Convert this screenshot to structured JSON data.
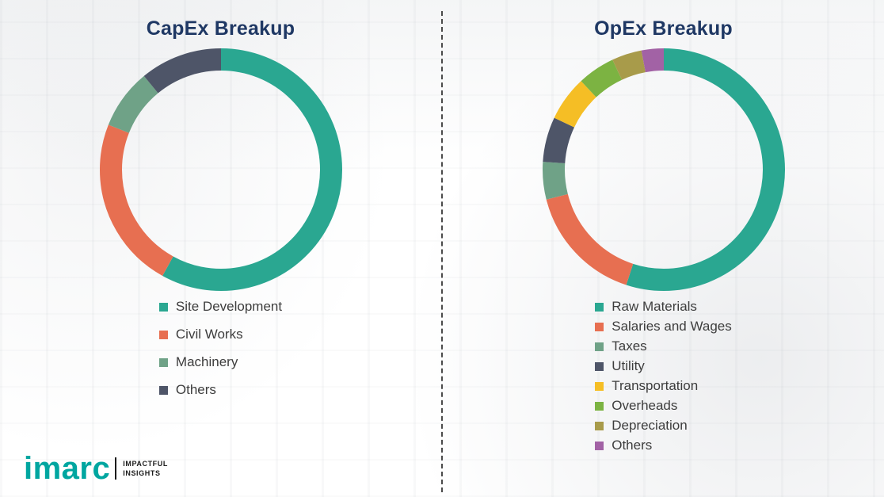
{
  "chart_data": [
    {
      "type": "pie",
      "variant": "donut",
      "title": "CapEx Breakup",
      "labels": [
        "Site Development",
        "Civil Works",
        "Machinery",
        "Others"
      ],
      "values": [
        58,
        23,
        8,
        11
      ],
      "colors": [
        "#2AA791",
        "#E76F51",
        "#6FA287",
        "#4E5568"
      ],
      "legend_position": "bottom",
      "data_labels_shown": false
    },
    {
      "type": "pie",
      "variant": "donut",
      "title": "OpEx Breakup",
      "labels": [
        "Raw Materials",
        "Salaries and Wages",
        "Taxes",
        "Utility",
        "Transportation",
        "Overheads",
        "Depreciation",
        "Others"
      ],
      "values": [
        55,
        16,
        5,
        6,
        6,
        5,
        4,
        3
      ],
      "colors": [
        "#2AA791",
        "#E76F51",
        "#6FA287",
        "#4E5568",
        "#F5BE25",
        "#7CB342",
        "#A89B4A",
        "#A262A5"
      ],
      "legend_position": "bottom",
      "data_labels_shown": false
    }
  ],
  "divider": {
    "style": "vertical-dashed"
  },
  "logo": {
    "name": "imarc",
    "tagline_line1": "IMPACTFUL",
    "tagline_line2": "INSIGHTS",
    "brand_color": "#00A6A0"
  }
}
